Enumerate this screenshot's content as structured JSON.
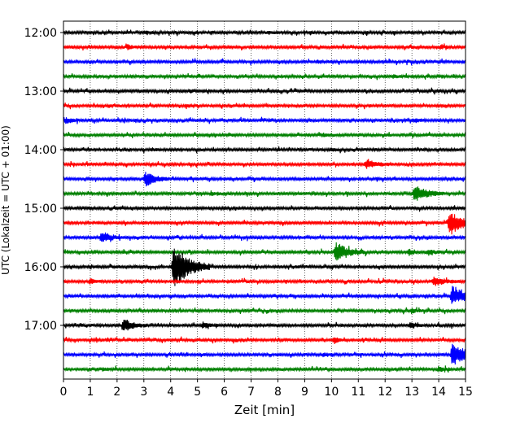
{
  "chart_data": {
    "type": "line",
    "subtype": "helicorder-seismogram",
    "xlabel": "Zeit  [min]",
    "ylabel": "UTC (Lokalzeit = UTC + 01:00)",
    "xlim": [
      0,
      15
    ],
    "x_ticks": [
      0,
      1,
      2,
      3,
      4,
      5,
      6,
      7,
      8,
      9,
      10,
      11,
      12,
      13,
      14,
      15
    ],
    "grid": "vertical dotted lines at each minute",
    "trace_interval_minutes": 15,
    "y_tick_labels": [
      "12:00",
      "13:00",
      "14:00",
      "15:00",
      "16:00",
      "17:00"
    ],
    "y_tick_trace_index": [
      0,
      4,
      8,
      12,
      16,
      20
    ],
    "trace_colors": [
      "#000000",
      "#ff0000",
      "#0000ff",
      "#008000"
    ],
    "traces": [
      {
        "start": "12:00",
        "color": "#000000",
        "events": [
          {
            "t": 3.1,
            "amp": 0.15,
            "dur": 0.2
          },
          {
            "t": 7.6,
            "amp": 0.12,
            "dur": 0.2
          }
        ]
      },
      {
        "start": "12:15",
        "color": "#ff0000",
        "events": [
          {
            "t": 2.4,
            "amp": 0.25,
            "dur": 0.2
          },
          {
            "t": 14.1,
            "amp": 0.15,
            "dur": 0.2
          }
        ]
      },
      {
        "start": "12:30",
        "color": "#0000ff",
        "events": [
          {
            "t": 9.5,
            "amp": 0.2,
            "dur": 0.2
          }
        ]
      },
      {
        "start": "12:45",
        "color": "#008000",
        "events": [
          {
            "t": 12.3,
            "amp": 0.15,
            "dur": 0.2
          }
        ]
      },
      {
        "start": "13:00",
        "color": "#000000",
        "events": [
          {
            "t": 4.7,
            "amp": 0.12,
            "dur": 0.2
          }
        ]
      },
      {
        "start": "13:15",
        "color": "#ff0000",
        "events": [
          {
            "t": 4.6,
            "amp": 0.18,
            "dur": 0.2
          }
        ]
      },
      {
        "start": "13:30",
        "color": "#0000ff",
        "events": [
          {
            "t": 0.1,
            "amp": 0.35,
            "dur": 0.2
          },
          {
            "t": 13.1,
            "amp": 0.2,
            "dur": 0.2
          }
        ]
      },
      {
        "start": "13:45",
        "color": "#008000",
        "events": [
          {
            "t": 9.7,
            "amp": 0.15,
            "dur": 0.2
          }
        ]
      },
      {
        "start": "14:00",
        "color": "#000000",
        "events": [
          {
            "t": 3.3,
            "amp": 0.15,
            "dur": 0.2
          },
          {
            "t": 10.0,
            "amp": 0.15,
            "dur": 0.2
          }
        ]
      },
      {
        "start": "14:15",
        "color": "#ff0000",
        "events": [
          {
            "t": 11.3,
            "amp": 0.5,
            "dur": 0.4
          }
        ]
      },
      {
        "start": "14:30",
        "color": "#0000ff",
        "events": [
          {
            "t": 3.05,
            "amp": 0.9,
            "dur": 0.35
          }
        ]
      },
      {
        "start": "14:45",
        "color": "#008000",
        "events": [
          {
            "t": 5.5,
            "amp": 0.2,
            "dur": 0.2
          },
          {
            "t": 13.1,
            "amp": 1.0,
            "dur": 0.45
          }
        ]
      },
      {
        "start": "15:00",
        "color": "#000000",
        "events": []
      },
      {
        "start": "15:15",
        "color": "#ff0000",
        "events": [
          {
            "t": 14.4,
            "amp": 1.5,
            "dur": 0.5
          }
        ]
      },
      {
        "start": "15:30",
        "color": "#0000ff",
        "events": [
          {
            "t": 1.4,
            "amp": 0.55,
            "dur": 0.35
          }
        ]
      },
      {
        "start": "15:45",
        "color": "#008000",
        "events": [
          {
            "t": 10.15,
            "amp": 1.2,
            "dur": 0.45
          },
          {
            "t": 12.9,
            "amp": 0.3,
            "dur": 0.2
          },
          {
            "t": 13.6,
            "amp": 0.3,
            "dur": 0.2
          }
        ]
      },
      {
        "start": "16:00",
        "color": "#000000",
        "events": [
          {
            "t": 4.1,
            "amp": 2.9,
            "dur": 0.55
          }
        ]
      },
      {
        "start": "16:15",
        "color": "#ff0000",
        "events": [
          {
            "t": 1.0,
            "amp": 0.3,
            "dur": 0.2
          },
          {
            "t": 13.8,
            "amp": 0.5,
            "dur": 0.4
          }
        ]
      },
      {
        "start": "16:30",
        "color": "#0000ff",
        "events": [
          {
            "t": 14.5,
            "amp": 1.2,
            "dur": 0.45
          }
        ]
      },
      {
        "start": "16:45",
        "color": "#008000",
        "events": [
          {
            "t": 13.0,
            "amp": 0.25,
            "dur": 0.2
          }
        ]
      },
      {
        "start": "17:00",
        "color": "#000000",
        "events": [
          {
            "t": 2.25,
            "amp": 0.75,
            "dur": 0.35
          },
          {
            "t": 5.2,
            "amp": 0.3,
            "dur": 0.25
          },
          {
            "t": 12.95,
            "amp": 0.35,
            "dur": 0.2
          }
        ]
      },
      {
        "start": "17:15",
        "color": "#ff0000",
        "events": [
          {
            "t": 10.1,
            "amp": 0.35,
            "dur": 0.2
          }
        ]
      },
      {
        "start": "17:30",
        "color": "#0000ff",
        "events": [
          {
            "t": 14.5,
            "amp": 1.3,
            "dur": 0.5
          },
          {
            "t": 9.7,
            "amp": 0.2,
            "dur": 0.2
          }
        ]
      },
      {
        "start": "17:45",
        "color": "#008000",
        "events": [
          {
            "t": 1.5,
            "amp": 0.2,
            "dur": 0.2
          },
          {
            "t": 14.0,
            "amp": 0.3,
            "dur": 0.2
          }
        ]
      }
    ]
  }
}
